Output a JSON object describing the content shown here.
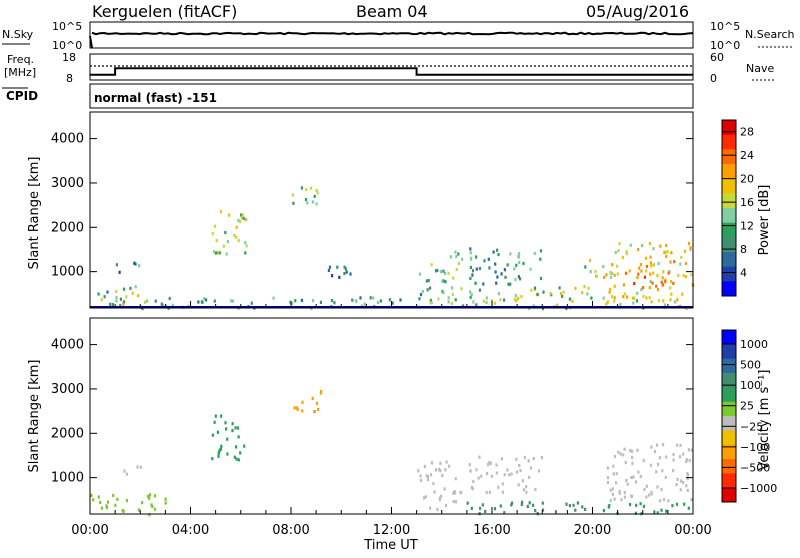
{
  "header": {
    "station": "Kerguelen (fitACF)",
    "beam": "Beam 04",
    "date": "05/Aug/2016"
  },
  "strip1": {
    "left_label": "N.Sky",
    "left_ticks": [
      "10^5",
      "10^0"
    ],
    "right_label": "N.Search",
    "right_ticks": [
      "10^5",
      "10^0"
    ]
  },
  "strip2": {
    "left_label_1": "Freq.",
    "left_label_2": "[MHz]",
    "left_ticks": [
      "18",
      "8"
    ],
    "right_label": "Nave",
    "right_ticks": [
      "60",
      "0"
    ],
    "cpid_label": "CPID",
    "cpid_text": "normal (fast) -151"
  },
  "chart_data": [
    {
      "type": "heatmap",
      "name": "power",
      "ylabel": "Slant Range [km]",
      "yticks": [
        1000,
        2000,
        3000,
        4000
      ],
      "ylim": [
        180,
        4600
      ],
      "xlim": [
        0,
        24
      ],
      "colorbar": {
        "label": "Power [dB]",
        "ticks": [
          4,
          8,
          12,
          16,
          20,
          24,
          28
        ],
        "range": [
          0,
          30
        ],
        "colors": [
          "#0000ff",
          "#1f3fa8",
          "#2a6a9e",
          "#3f8f70",
          "#2aa05a",
          "#7fd0a0",
          "#c7d93a",
          "#f0c000",
          "#ffa000",
          "#ff6a00",
          "#ff2a00",
          "#e00000"
        ]
      },
      "regions": [
        {
          "t0": 0.0,
          "t1": 1.8,
          "r0": 200,
          "r1": 700,
          "v": 12
        },
        {
          "t0": 1.0,
          "t1": 2.0,
          "r0": 1000,
          "r1": 1250,
          "v": 8
        },
        {
          "t0": 1.2,
          "t1": 2.2,
          "r0": 300,
          "r1": 550,
          "v": 20
        },
        {
          "t0": 2.0,
          "t1": 12.8,
          "r0": 200,
          "r1": 450,
          "v": 10
        },
        {
          "t0": 4.8,
          "t1": 6.2,
          "r0": 1400,
          "r1": 2450,
          "v": 16
        },
        {
          "t0": 8.0,
          "t1": 9.2,
          "r0": 2450,
          "r1": 3000,
          "v": 12
        },
        {
          "t0": 9.4,
          "t1": 10.6,
          "r0": 850,
          "r1": 1300,
          "v": 8
        },
        {
          "t0": 13.0,
          "t1": 14.8,
          "r0": 300,
          "r1": 1500,
          "v": 12
        },
        {
          "t0": 14.8,
          "t1": 20.0,
          "r0": 200,
          "r1": 700,
          "v": 14
        },
        {
          "t0": 15.0,
          "t1": 18.0,
          "r0": 750,
          "r1": 1600,
          "v": 10
        },
        {
          "t0": 19.4,
          "t1": 20.5,
          "r0": 900,
          "r1": 1300,
          "v": 16
        },
        {
          "t0": 20.5,
          "t1": 24.0,
          "r0": 400,
          "r1": 1700,
          "v": 18
        },
        {
          "t0": 21.6,
          "t1": 23.0,
          "r0": 700,
          "r1": 1200,
          "v": 22
        },
        {
          "t0": 20.0,
          "t1": 24.0,
          "r0": 200,
          "r1": 500,
          "v": 16
        }
      ]
    },
    {
      "type": "heatmap",
      "name": "velocity",
      "ylabel": "Slant Range [km]",
      "yticks": [
        1000,
        2000,
        3000,
        4000
      ],
      "ylim": [
        180,
        4600
      ],
      "xlim": [
        0,
        24
      ],
      "xticks": [
        "00:00",
        "04:00",
        "08:00",
        "12:00",
        "16:00",
        "20:00",
        "00:00"
      ],
      "xlabel": "Time UT",
      "colorbar": {
        "label": "Velocity [m s⁻¹]",
        "ticks": [
          "1000",
          "500",
          "100",
          "25",
          "−25",
          "−100",
          "−500",
          "−1000"
        ],
        "colors": [
          "#0000ff",
          "#1f3fa8",
          "#2a6a9e",
          "#3f8f70",
          "#2aa05a",
          "#7cc830",
          "#bdbdbd",
          "#f0c000",
          "#ffa000",
          "#ff6a00",
          "#ff2a00",
          "#e00000"
        ]
      },
      "regions": [
        {
          "t0": 0.0,
          "t1": 3.2,
          "r0": 200,
          "r1": 650,
          "v": 40
        },
        {
          "t0": 1.0,
          "t1": 2.0,
          "r0": 1100,
          "r1": 1300,
          "v": 0
        },
        {
          "t0": 4.8,
          "t1": 6.2,
          "r0": 1400,
          "r1": 2450,
          "v": 80
        },
        {
          "t0": 8.0,
          "t1": 9.2,
          "r0": 2450,
          "r1": 3000,
          "v": -60
        },
        {
          "t0": 13.0,
          "t1": 14.8,
          "r0": 300,
          "r1": 1400,
          "v": 10
        },
        {
          "t0": 14.8,
          "t1": 20.0,
          "r0": 200,
          "r1": 500,
          "v": 120
        },
        {
          "t0": 15.0,
          "t1": 18.0,
          "r0": 700,
          "r1": 1500,
          "v": 5
        },
        {
          "t0": 20.5,
          "t1": 24.0,
          "r0": 500,
          "r1": 1800,
          "v": 0
        },
        {
          "t0": 20.0,
          "t1": 24.0,
          "r0": 200,
          "r1": 450,
          "v": 90
        }
      ]
    }
  ],
  "freq_steps": [
    {
      "t0": 0.0,
      "t1": 1.0,
      "v": 10
    },
    {
      "t0": 1.0,
      "t1": 13.0,
      "v": 12.5
    },
    {
      "t0": 13.0,
      "t1": 24.0,
      "v": 10
    }
  ]
}
